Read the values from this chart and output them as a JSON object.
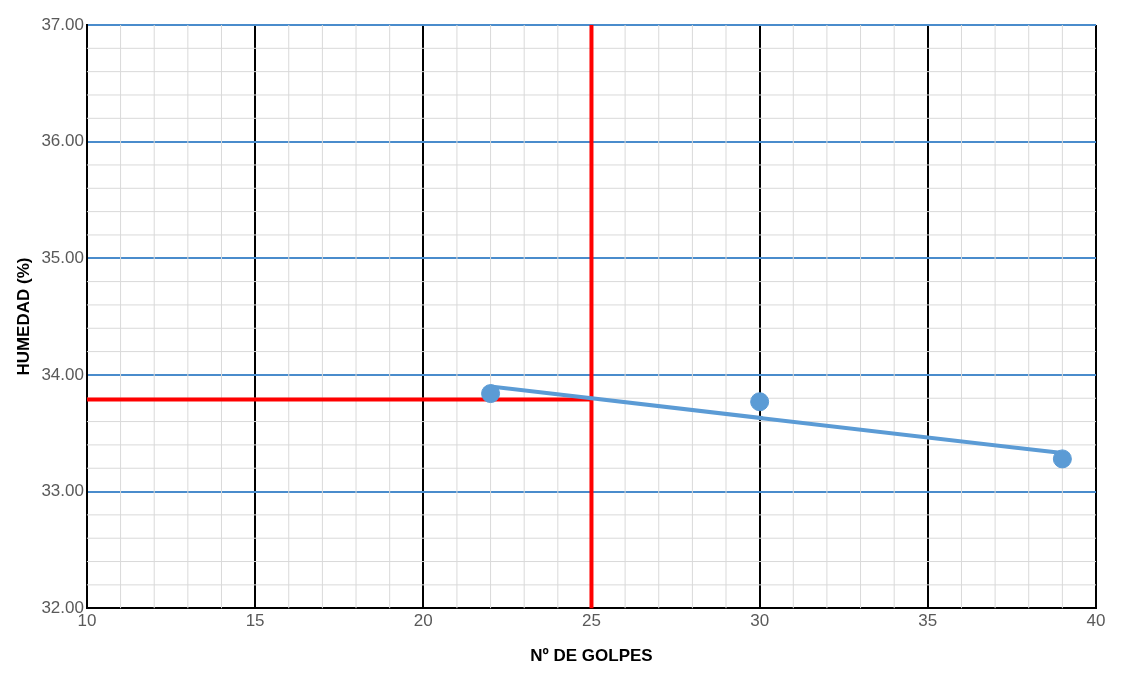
{
  "chart_data": {
    "type": "scatter",
    "xlabel": "Nº DE GOLPES",
    "ylabel": "HUMEDAD (%)",
    "xlim": [
      10,
      40
    ],
    "xticks": [
      10,
      15,
      20,
      25,
      30,
      35,
      40
    ],
    "ylim": [
      32,
      37
    ],
    "yticks": [
      {
        "value": 32,
        "label": "32.00"
      },
      {
        "value": 33,
        "label": "33.00"
      },
      {
        "value": 34,
        "label": "34.00"
      },
      {
        "value": 35,
        "label": "35.00"
      },
      {
        "value": 36,
        "label": "36.00"
      },
      {
        "value": 37,
        "label": "37.00"
      }
    ],
    "grid": true,
    "legend": false,
    "series": [
      {
        "type": "scatter",
        "marker": "circle",
        "color": "#5b9bd5",
        "x": [
          22,
          30,
          39
        ],
        "values": [
          33.84,
          33.77,
          33.28
        ]
      },
      {
        "type": "line",
        "marker": "none",
        "color": "#5b9bd5",
        "x": [
          22,
          39
        ],
        "values": [
          33.9,
          33.33
        ]
      },
      {
        "type": "line",
        "marker": "none",
        "color": "#ff0000",
        "x": [
          10,
          25
        ],
        "values": [
          33.79,
          33.79
        ]
      }
    ],
    "ref_lines": [
      {
        "axis": "x",
        "value": 25,
        "color": "#ff0000"
      }
    ]
  }
}
